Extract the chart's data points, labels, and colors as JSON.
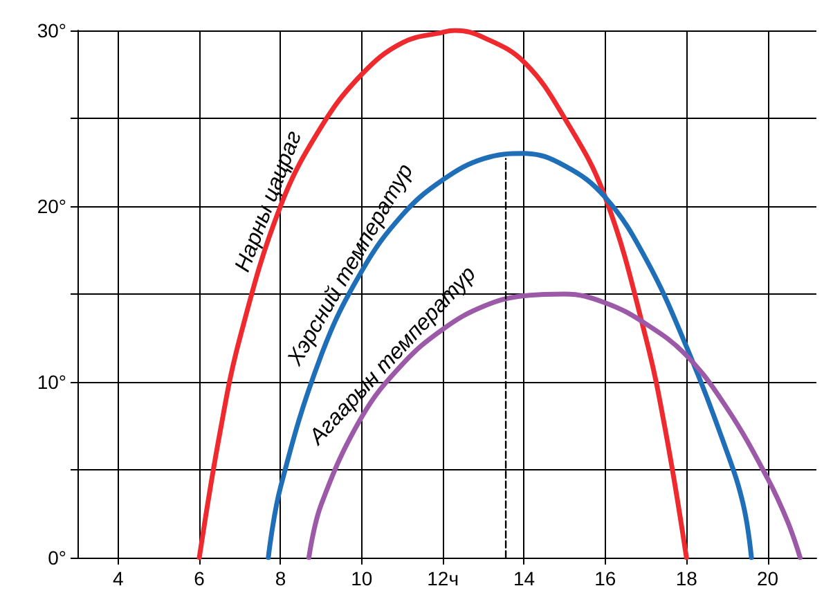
{
  "chart_data": {
    "type": "line",
    "xlim": [
      3,
      21.2
    ],
    "ylim": [
      0,
      30
    ],
    "xticks": [
      4,
      6,
      8,
      10,
      {
        "value": 12,
        "label": "12ч"
      },
      14,
      16,
      18,
      20
    ],
    "yticks": [
      {
        "value": 0,
        "label": "0°"
      },
      {
        "value": 5,
        "label": null
      },
      {
        "value": 10,
        "label": "10°"
      },
      {
        "value": 15,
        "label": null
      },
      {
        "value": 20,
        "label": "20°"
      },
      {
        "value": 25,
        "label": null
      },
      {
        "value": 30,
        "label": "30°"
      }
    ],
    "grid": true,
    "marker": "none",
    "line_style": "solid",
    "series": [
      {
        "name": "Нарны цацраг",
        "color": "#ee2a2f",
        "x": [
          6,
          6.5,
          7,
          8,
          9,
          10,
          11,
          12,
          12.3,
          13,
          14,
          15,
          16,
          17,
          17.5,
          18
        ],
        "values": [
          0,
          7,
          12.5,
          20,
          24.5,
          27.5,
          29.3,
          29.9,
          30,
          29.6,
          28.2,
          25,
          20.5,
          12.5,
          7,
          0
        ]
      },
      {
        "name": "Хэрсний температур",
        "color": "#1f6fb8",
        "x": [
          7.7,
          8,
          9,
          10,
          11,
          12,
          13,
          14,
          15,
          16,
          17,
          18,
          19,
          19.4,
          19.6
        ],
        "values": [
          0,
          4,
          11.5,
          16.3,
          19.5,
          21.5,
          22.7,
          23,
          22.3,
          20.5,
          17,
          12,
          6,
          3,
          0
        ]
      },
      {
        "name": "Агаарын температур",
        "color": "#9b59a8",
        "x": [
          8.7,
          9,
          10,
          11,
          12,
          13,
          14,
          15,
          16,
          17,
          18,
          19,
          20,
          20.5,
          20.8
        ],
        "values": [
          0,
          3,
          8,
          11,
          13,
          14.3,
          14.9,
          15,
          14.5,
          13.3,
          11.5,
          8.5,
          4.5,
          2,
          0
        ]
      },
      {
        "color": "#000000",
        "line_style": "dashed",
        "x": [
          13.55,
          13.55
        ],
        "values": [
          0,
          22.7
        ]
      }
    ]
  }
}
